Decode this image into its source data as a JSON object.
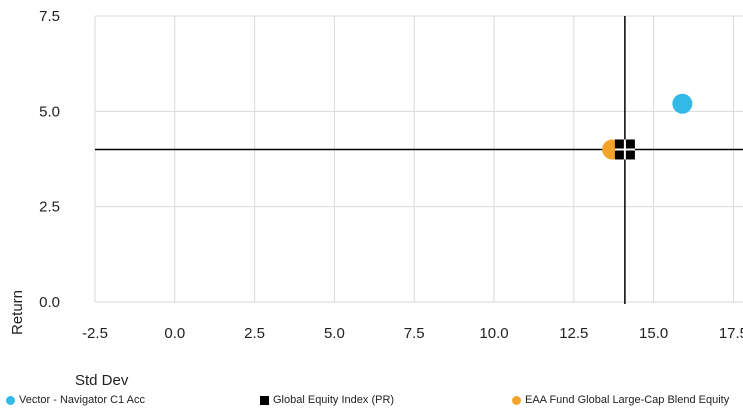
{
  "chart_data": {
    "type": "scatter",
    "xlabel": "Std Dev",
    "ylabel": "Return",
    "xlim": [
      -2.5,
      17.8
    ],
    "ylim": [
      0,
      7.5
    ],
    "x_ticks": [
      "-2.5",
      "0.0",
      "2.5",
      "5.0",
      "7.5",
      "10.0",
      "12.5",
      "15.0",
      "17.5"
    ],
    "y_ticks": [
      "0.0",
      "2.5",
      "5.0",
      "7.5"
    ],
    "grid": true,
    "reference_lines": {
      "x": 14.1,
      "y": 4.0
    },
    "legend_placement": "bottom",
    "series": [
      {
        "name": "Vector - Navigator C1 Acc",
        "x": 15.9,
        "y": 5.2,
        "color": "#33b9e6",
        "marker": "circle"
      },
      {
        "name": "Global Equity Index (PR)",
        "x": 14.1,
        "y": 4.0,
        "color": "#000000",
        "marker": "square-quartered"
      },
      {
        "name": "EAA Fund Global Large-Cap Blend Equity",
        "x": 13.7,
        "y": 4.0,
        "color": "#f5a32a",
        "marker": "circle"
      }
    ]
  }
}
